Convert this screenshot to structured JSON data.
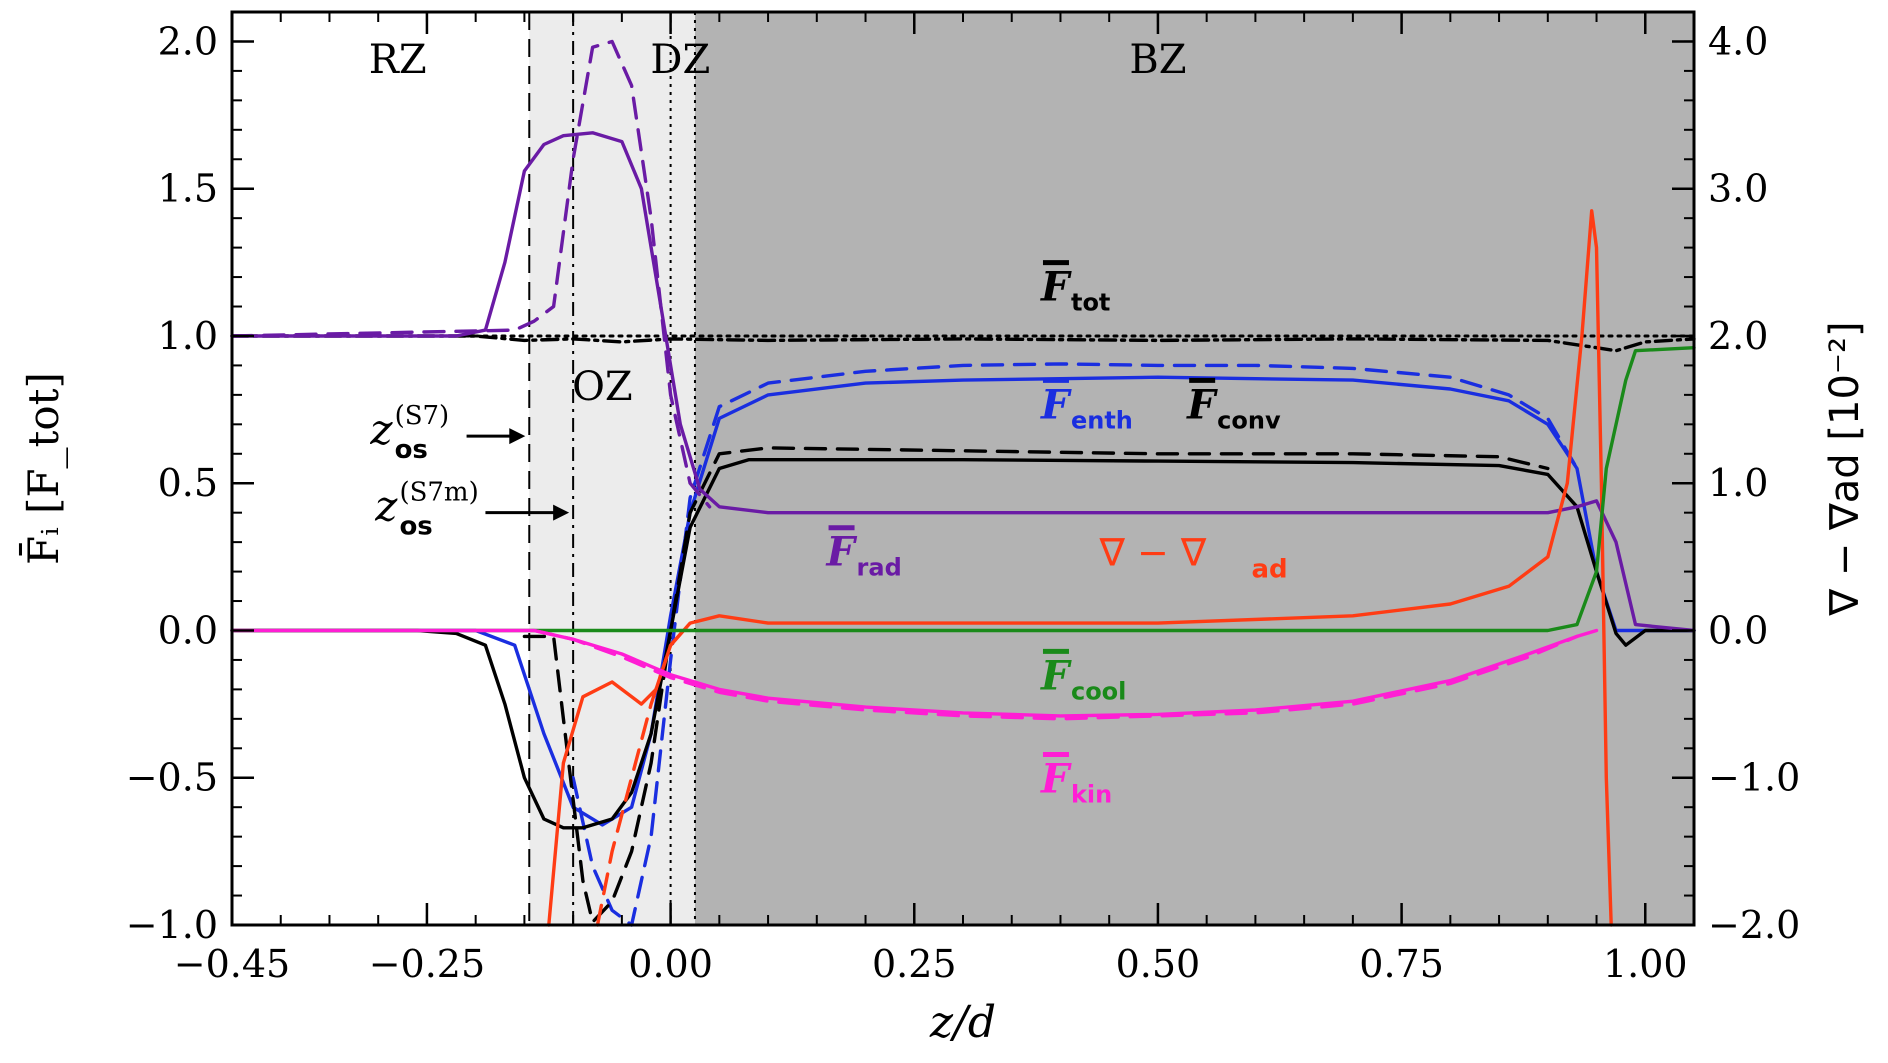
{
  "chart_data": {
    "type": "line",
    "xlabel": "z/d",
    "ylabel_left": "F̄ᵢ [F_tot]",
    "ylabel_right": "∇ − ∇ad [10⁻²]",
    "xlim": [
      -0.45,
      1.05
    ],
    "ylim_left": [
      -1.0,
      2.1
    ],
    "ylim_right": [
      -2.0,
      4.2
    ],
    "x_ticks": [
      -0.45,
      -0.25,
      0.0,
      0.25,
      0.5,
      0.75,
      1.0
    ],
    "x_tick_labels": [
      "−0.45",
      "−0.25",
      "0.00",
      "0.25",
      "0.50",
      "0.75",
      "1.00"
    ],
    "y_ticks_left": [
      -1.0,
      -0.5,
      0.0,
      0.5,
      1.0,
      1.5,
      2.0
    ],
    "y_tick_labels_left": [
      "−1.0",
      "−0.5",
      "0.0",
      "0.5",
      "1.0",
      "1.5",
      "2.0"
    ],
    "y_ticks_right": [
      -2.0,
      -1.0,
      0.0,
      1.0,
      2.0,
      3.0,
      4.0
    ],
    "y_tick_labels_right": [
      "−2.0",
      "−1.0",
      "0.0",
      "1.0",
      "2.0",
      "3.0",
      "4.0"
    ],
    "zones": [
      {
        "name": "RZ",
        "x0": -0.45,
        "x1": -0.145,
        "fill": "#ffffff",
        "label": "RZ",
        "label_x": -0.28,
        "label_y": 1.94
      },
      {
        "name": "OZ",
        "x0": -0.145,
        "x1": 0.025,
        "fill": "#ececec",
        "label": "OZ",
        "label_x": -0.07,
        "label_y": 0.83
      },
      {
        "name": "DZ",
        "x0": -0.01,
        "x1": 0.025,
        "fill": "#ececec",
        "label": "DZ",
        "label_x": 0.01,
        "label_y": 1.94
      },
      {
        "name": "BZ",
        "x0": 0.025,
        "x1": 1.05,
        "fill": "#b3b3b3",
        "label": "BZ",
        "label_x": 0.5,
        "label_y": 1.94
      }
    ],
    "vlines": [
      {
        "x": -0.145,
        "style": "dashed"
      },
      {
        "x": -0.1,
        "style": "dashdot"
      },
      {
        "x": 0.0,
        "style": "dotted"
      },
      {
        "x": 0.025,
        "style": "dotted"
      }
    ],
    "annotations": [
      {
        "text": "z",
        "sup": "(S7)",
        "sub": "os",
        "x": -0.275,
        "y": 0.66,
        "arrow_to_x": -0.145
      },
      {
        "text": "z",
        "sup": "(S7m)",
        "sub": "os",
        "x": -0.27,
        "y": 0.4,
        "arrow_to_x": -0.1
      }
    ],
    "series": [
      {
        "name": "F_tot",
        "label": "F",
        "sub": "tot",
        "color": "#000000",
        "axis": "left",
        "style": "dashdot",
        "label_x": 0.38,
        "label_y": 1.12,
        "x": [
          -0.45,
          -0.2,
          -0.15,
          -0.1,
          -0.05,
          0.0,
          0.1,
          0.3,
          0.5,
          0.7,
          0.9,
          0.95,
          0.97,
          1.0,
          1.05
        ],
        "y": [
          1.0,
          1.0,
          0.985,
          0.99,
          0.98,
          0.99,
          0.985,
          0.99,
          0.985,
          0.99,
          0.985,
          0.96,
          0.95,
          0.98,
          0.99
        ]
      },
      {
        "name": "F_tot_m",
        "color": "#000000",
        "axis": "left",
        "style": "dotted",
        "x": [
          -0.45,
          0.0,
          0.5,
          1.05
        ],
        "y": [
          1.0,
          1.0,
          1.0,
          1.0
        ]
      },
      {
        "name": "F_enth",
        "label": "F",
        "sub": "enth",
        "color": "#1a2ee0",
        "axis": "left",
        "style": "solid",
        "label_x": 0.38,
        "label_y": 0.72,
        "x": [
          -0.45,
          -0.2,
          -0.16,
          -0.13,
          -0.1,
          -0.07,
          -0.04,
          -0.02,
          0.0,
          0.02,
          0.05,
          0.1,
          0.2,
          0.3,
          0.4,
          0.5,
          0.6,
          0.7,
          0.8,
          0.86,
          0.9,
          0.93,
          0.95,
          0.97,
          1.05
        ],
        "y": [
          0.0,
          0.0,
          -0.05,
          -0.35,
          -0.6,
          -0.66,
          -0.6,
          -0.35,
          0.05,
          0.4,
          0.72,
          0.8,
          0.84,
          0.85,
          0.855,
          0.86,
          0.855,
          0.85,
          0.82,
          0.78,
          0.7,
          0.55,
          0.2,
          0.0,
          0.0
        ]
      },
      {
        "name": "F_enth_m",
        "color": "#1a2ee0",
        "axis": "left",
        "style": "dashed",
        "x": [
          -0.1,
          -0.08,
          -0.06,
          -0.04,
          -0.02,
          0.0,
          0.02,
          0.05,
          0.1,
          0.2,
          0.3,
          0.4,
          0.5,
          0.6,
          0.7,
          0.8,
          0.86,
          0.9,
          0.93
        ],
        "y": [
          -0.5,
          -0.8,
          -0.95,
          -1.0,
          -0.7,
          -0.1,
          0.45,
          0.76,
          0.84,
          0.88,
          0.9,
          0.905,
          0.9,
          0.9,
          0.89,
          0.86,
          0.8,
          0.72,
          0.55
        ]
      },
      {
        "name": "F_conv",
        "label": "F",
        "sub": "conv",
        "color": "#000000",
        "axis": "left",
        "style": "solid",
        "label_x": 0.53,
        "label_y": 0.72,
        "x": [
          -0.45,
          -0.26,
          -0.22,
          -0.19,
          -0.17,
          -0.15,
          -0.13,
          -0.11,
          -0.09,
          -0.06,
          -0.04,
          -0.02,
          0.0,
          0.02,
          0.05,
          0.08,
          0.15,
          0.3,
          0.5,
          0.7,
          0.85,
          0.9,
          0.93,
          0.95,
          0.97,
          0.98,
          1.0,
          1.05
        ],
        "y": [
          0.0,
          0.0,
          -0.01,
          -0.05,
          -0.25,
          -0.5,
          -0.64,
          -0.67,
          -0.67,
          -0.64,
          -0.55,
          -0.35,
          0.0,
          0.35,
          0.55,
          0.58,
          0.58,
          0.58,
          0.575,
          0.57,
          0.56,
          0.53,
          0.42,
          0.2,
          -0.01,
          -0.05,
          0.0,
          0.0
        ]
      },
      {
        "name": "F_conv_m",
        "color": "#000000",
        "axis": "left",
        "style": "dashed",
        "x": [
          -0.15,
          -0.12,
          -0.11,
          -0.09,
          -0.08,
          -0.06,
          -0.04,
          -0.02,
          0.0,
          0.02,
          0.05,
          0.1,
          0.3,
          0.5,
          0.7,
          0.85,
          0.9
        ],
        "y": [
          -0.02,
          -0.02,
          -0.3,
          -0.85,
          -0.99,
          -0.92,
          -0.75,
          -0.45,
          0.0,
          0.4,
          0.6,
          0.62,
          0.61,
          0.6,
          0.6,
          0.59,
          0.55
        ]
      },
      {
        "name": "F_rad",
        "label": "F",
        "sub": "rad",
        "color": "#6a1ba5",
        "axis": "left",
        "style": "solid",
        "label_x": 0.16,
        "label_y": 0.22,
        "x": [
          -0.45,
          -0.22,
          -0.19,
          -0.17,
          -0.15,
          -0.13,
          -0.11,
          -0.08,
          -0.05,
          -0.03,
          -0.01,
          0.01,
          0.03,
          0.05,
          0.1,
          0.3,
          0.5,
          0.7,
          0.9,
          0.93,
          0.95,
          0.97,
          0.99,
          1.05
        ],
        "y": [
          1.0,
          1.0,
          1.02,
          1.25,
          1.56,
          1.65,
          1.68,
          1.69,
          1.66,
          1.5,
          1.1,
          0.7,
          0.48,
          0.42,
          0.4,
          0.4,
          0.4,
          0.4,
          0.4,
          0.42,
          0.44,
          0.3,
          0.02,
          0.0
        ]
      },
      {
        "name": "F_rad_m",
        "color": "#6a1ba5",
        "axis": "left",
        "style": "dashed",
        "x": [
          -0.45,
          -0.16,
          -0.14,
          -0.12,
          -0.1,
          -0.08,
          -0.06,
          -0.04,
          -0.02,
          0.0,
          0.02,
          0.04
        ],
        "y": [
          1.0,
          1.02,
          1.05,
          1.1,
          1.6,
          1.98,
          2.0,
          1.85,
          1.4,
          0.8,
          0.5,
          0.42
        ]
      },
      {
        "name": "nabla_minus_nabla_ad",
        "label": "∇ − ∇",
        "sub": "ad",
        "color": "#ff3c14",
        "axis": "right",
        "style": "solid",
        "label_x": 0.44,
        "label_y": 0.22,
        "x": [
          -0.125,
          -0.11,
          -0.09,
          -0.06,
          -0.03,
          -0.015,
          0.0,
          0.02,
          0.05,
          0.1,
          0.3,
          0.5,
          0.7,
          0.8,
          0.86,
          0.9,
          0.92,
          0.935,
          0.945,
          0.95,
          0.955,
          0.96,
          0.965
        ],
        "y": [
          -2.0,
          -0.9,
          -0.45,
          -0.35,
          -0.5,
          -0.4,
          -0.1,
          0.05,
          0.1,
          0.05,
          0.05,
          0.05,
          0.1,
          0.18,
          0.3,
          0.5,
          1.0,
          2.0,
          2.85,
          2.6,
          1.0,
          -1.0,
          -2.0
        ]
      },
      {
        "name": "nabla_minus_nabla_ad_m",
        "color": "#ff3c14",
        "axis": "right",
        "style": "dashed",
        "x": [
          -0.075,
          -0.06,
          -0.04,
          -0.02,
          0.0,
          0.02
        ],
        "y": [
          -2.0,
          -1.5,
          -1.0,
          -0.5,
          -0.1,
          0.05
        ]
      },
      {
        "name": "F_cool",
        "label": "F",
        "sub": "cool",
        "color": "#1a8a1a",
        "axis": "left",
        "style": "solid",
        "label_x": 0.38,
        "label_y": -0.2,
        "x": [
          -0.45,
          0.8,
          0.9,
          0.93,
          0.95,
          0.96,
          0.98,
          0.99,
          1.05
        ],
        "y": [
          0.0,
          0.0,
          0.0,
          0.02,
          0.2,
          0.55,
          0.85,
          0.95,
          0.96
        ]
      },
      {
        "name": "F_cool_m",
        "color": "#1a8a1a",
        "axis": "left",
        "style": "dotted",
        "x": [
          -0.45,
          0.9
        ],
        "y": [
          0.0,
          0.0
        ]
      },
      {
        "name": "F_kin",
        "label": "F",
        "sub": "kin",
        "color": "#ff1ed4",
        "axis": "left",
        "style": "solid",
        "label_x": 0.38,
        "label_y": -0.55,
        "x": [
          -0.45,
          -0.14,
          -0.1,
          -0.05,
          0.0,
          0.05,
          0.1,
          0.2,
          0.3,
          0.4,
          0.5,
          0.6,
          0.7,
          0.8,
          0.88,
          0.93,
          0.95
        ],
        "y": [
          0.0,
          0.0,
          -0.03,
          -0.08,
          -0.15,
          -0.2,
          -0.23,
          -0.26,
          -0.28,
          -0.29,
          -0.285,
          -0.27,
          -0.24,
          -0.17,
          -0.08,
          -0.02,
          0.0
        ]
      },
      {
        "name": "F_kin_m",
        "color": "#ff1ed4",
        "axis": "left",
        "style": "dashed",
        "x": [
          -0.14,
          -0.1,
          -0.05,
          0.0,
          0.05,
          0.1,
          0.2,
          0.3,
          0.4,
          0.5,
          0.6,
          0.7,
          0.8,
          0.88,
          0.93
        ],
        "y": [
          0.0,
          -0.03,
          -0.09,
          -0.16,
          -0.21,
          -0.24,
          -0.27,
          -0.29,
          -0.3,
          -0.29,
          -0.28,
          -0.25,
          -0.18,
          -0.09,
          -0.02
        ]
      }
    ],
    "colors": {
      "axis": "#000000",
      "oz_fill": "#ececec",
      "bz_fill": "#b3b3b3"
    }
  }
}
